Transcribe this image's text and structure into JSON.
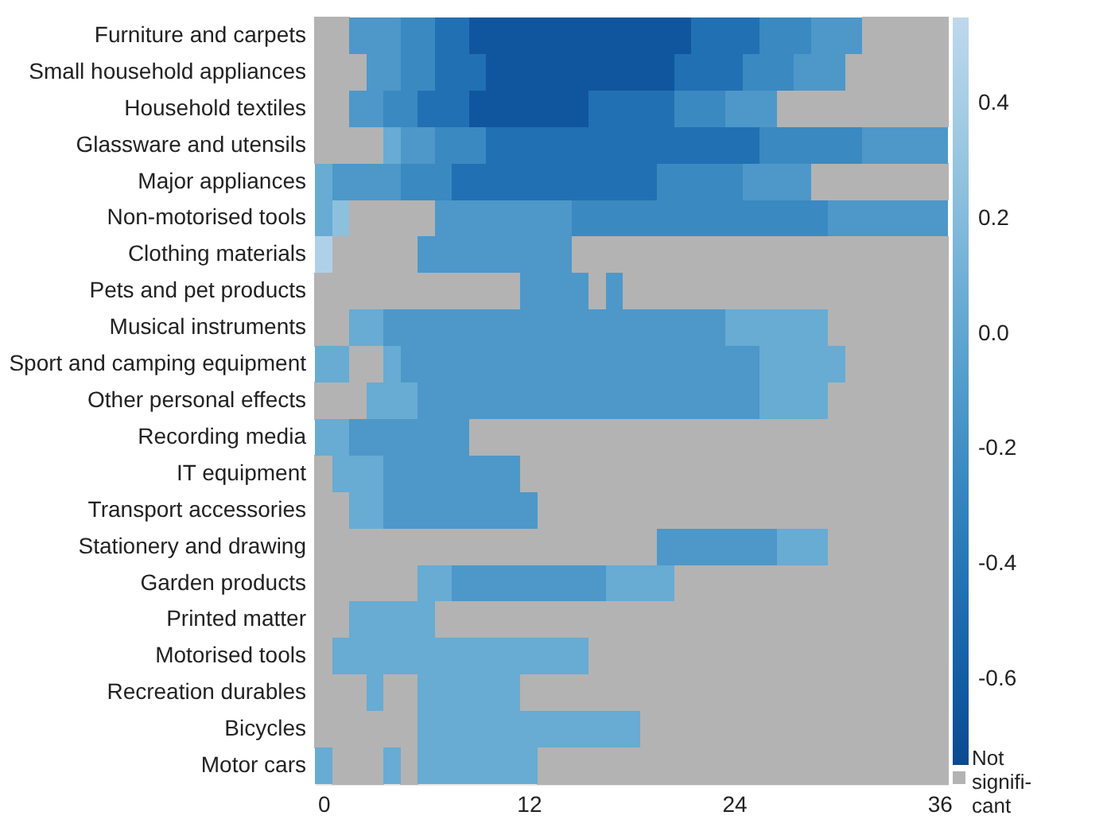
{
  "chart_data": {
    "type": "heatmap",
    "x": [
      0,
      1,
      2,
      3,
      4,
      5,
      6,
      7,
      8,
      9,
      10,
      11,
      12,
      13,
      14,
      15,
      16,
      17,
      18,
      19,
      20,
      21,
      22,
      23,
      24,
      25,
      26,
      27,
      28,
      29,
      30,
      31,
      32,
      33,
      34,
      35,
      36
    ],
    "xlim": [
      -0.5,
      36.5
    ],
    "xticks": [
      0,
      12,
      24,
      36
    ],
    "y_categories": [
      "Furniture and carpets",
      "Small household appliances",
      "Household textiles",
      "Glassware and utensils",
      "Major appliances",
      "Non-motorised tools",
      "Clothing materials",
      "Pets and pet products",
      "Musical instruments",
      "Sport and camping equipment",
      "Other personal effects",
      "Recording media",
      "IT equipment",
      "Transport accessories",
      "Stationery and drawing",
      "Garden products",
      "Printed matter",
      "Motorised tools",
      "Recreation durables",
      "Bicycles",
      "Motor cars"
    ],
    "cells": [
      [
        null,
        null,
        -0.12,
        -0.12,
        -0.12,
        -0.25,
        -0.25,
        -0.45,
        -0.45,
        -0.65,
        -0.65,
        -0.65,
        -0.65,
        -0.65,
        -0.65,
        -0.65,
        -0.65,
        -0.65,
        -0.65,
        -0.65,
        -0.65,
        -0.65,
        -0.45,
        -0.45,
        -0.45,
        -0.45,
        -0.25,
        -0.25,
        -0.25,
        -0.12,
        -0.12,
        -0.12,
        null,
        null,
        null,
        null,
        null
      ],
      [
        null,
        null,
        null,
        -0.12,
        -0.12,
        -0.25,
        -0.25,
        -0.45,
        -0.45,
        -0.45,
        -0.65,
        -0.65,
        -0.65,
        -0.65,
        -0.65,
        -0.65,
        -0.65,
        -0.65,
        -0.65,
        -0.65,
        -0.65,
        -0.45,
        -0.45,
        -0.45,
        -0.45,
        -0.25,
        -0.25,
        -0.25,
        -0.12,
        -0.12,
        -0.12,
        null,
        null,
        null,
        null,
        null,
        null
      ],
      [
        null,
        null,
        -0.12,
        -0.12,
        -0.25,
        -0.25,
        -0.45,
        -0.45,
        -0.45,
        -0.65,
        -0.65,
        -0.65,
        -0.65,
        -0.65,
        -0.65,
        -0.65,
        -0.45,
        -0.45,
        -0.45,
        -0.45,
        -0.45,
        -0.25,
        -0.25,
        -0.25,
        -0.12,
        -0.12,
        -0.12,
        null,
        null,
        null,
        null,
        null,
        null,
        null,
        null,
        null,
        null
      ],
      [
        null,
        null,
        null,
        null,
        0.05,
        -0.12,
        -0.12,
        -0.25,
        -0.25,
        -0.25,
        -0.45,
        -0.45,
        -0.45,
        -0.45,
        -0.45,
        -0.45,
        -0.45,
        -0.45,
        -0.45,
        -0.45,
        -0.45,
        -0.45,
        -0.45,
        -0.45,
        -0.45,
        -0.45,
        -0.25,
        -0.25,
        -0.25,
        -0.25,
        -0.25,
        -0.25,
        -0.12,
        -0.12,
        -0.12,
        -0.12,
        -0.12
      ],
      [
        0.05,
        -0.12,
        -0.12,
        -0.12,
        -0.12,
        -0.25,
        -0.25,
        -0.25,
        -0.45,
        -0.45,
        -0.45,
        -0.45,
        -0.45,
        -0.45,
        -0.45,
        -0.45,
        -0.45,
        -0.45,
        -0.45,
        -0.45,
        -0.25,
        -0.25,
        -0.25,
        -0.25,
        -0.25,
        -0.12,
        -0.12,
        -0.12,
        -0.12,
        null,
        null,
        null,
        null,
        null,
        null,
        null,
        null
      ],
      [
        0.05,
        0.25,
        null,
        null,
        null,
        null,
        null,
        -0.12,
        -0.12,
        -0.12,
        -0.12,
        -0.12,
        -0.12,
        -0.12,
        -0.12,
        -0.25,
        -0.25,
        -0.25,
        -0.25,
        -0.25,
        -0.25,
        -0.25,
        -0.25,
        -0.25,
        -0.25,
        -0.25,
        -0.25,
        -0.25,
        -0.25,
        -0.25,
        -0.12,
        -0.12,
        -0.12,
        -0.12,
        -0.12,
        -0.12,
        -0.12
      ],
      [
        0.45,
        null,
        null,
        null,
        null,
        null,
        -0.12,
        -0.12,
        -0.12,
        -0.12,
        -0.12,
        -0.12,
        -0.12,
        -0.12,
        -0.12,
        null,
        null,
        null,
        null,
        null,
        null,
        null,
        null,
        null,
        null,
        null,
        null,
        null,
        null,
        null,
        null,
        null,
        null,
        null,
        null,
        null,
        null
      ],
      [
        null,
        null,
        null,
        null,
        null,
        null,
        null,
        null,
        null,
        null,
        null,
        null,
        -0.12,
        -0.12,
        -0.12,
        -0.12,
        null,
        -0.12,
        null,
        null,
        null,
        null,
        null,
        null,
        null,
        null,
        null,
        null,
        null,
        null,
        null,
        null,
        null,
        null,
        null,
        null,
        null
      ],
      [
        null,
        null,
        0.05,
        0.05,
        -0.12,
        -0.12,
        -0.12,
        -0.12,
        -0.12,
        -0.12,
        -0.12,
        -0.12,
        -0.12,
        -0.12,
        -0.12,
        -0.12,
        -0.12,
        -0.12,
        -0.12,
        -0.12,
        -0.12,
        -0.12,
        -0.12,
        -0.12,
        0.05,
        0.05,
        0.05,
        0.05,
        0.05,
        0.05,
        null,
        null,
        null,
        null,
        null,
        null,
        null
      ],
      [
        0.05,
        0.05,
        null,
        null,
        0.05,
        -0.12,
        -0.12,
        -0.12,
        -0.12,
        -0.12,
        -0.12,
        -0.12,
        -0.12,
        -0.12,
        -0.12,
        -0.12,
        -0.12,
        -0.12,
        -0.12,
        -0.12,
        -0.12,
        -0.12,
        -0.12,
        -0.12,
        -0.12,
        -0.12,
        0.05,
        0.05,
        0.05,
        0.05,
        0.05,
        null,
        null,
        null,
        null,
        null,
        null
      ],
      [
        null,
        null,
        null,
        0.05,
        0.05,
        0.05,
        -0.12,
        -0.12,
        -0.12,
        -0.12,
        -0.12,
        -0.12,
        -0.12,
        -0.12,
        -0.12,
        -0.12,
        -0.12,
        -0.12,
        -0.12,
        -0.12,
        -0.12,
        -0.12,
        -0.12,
        -0.12,
        -0.12,
        -0.12,
        0.05,
        0.05,
        0.05,
        0.05,
        null,
        null,
        null,
        null,
        null,
        null,
        null
      ],
      [
        0.05,
        0.05,
        -0.12,
        -0.12,
        -0.12,
        -0.12,
        -0.12,
        -0.12,
        -0.12,
        null,
        null,
        null,
        null,
        null,
        null,
        null,
        null,
        null,
        null,
        null,
        null,
        null,
        null,
        null,
        null,
        null,
        null,
        null,
        null,
        null,
        null,
        null,
        null,
        null,
        null,
        null,
        null
      ],
      [
        null,
        0.05,
        0.05,
        0.05,
        -0.12,
        -0.12,
        -0.12,
        -0.12,
        -0.12,
        -0.12,
        -0.12,
        -0.12,
        null,
        null,
        null,
        null,
        null,
        null,
        null,
        null,
        null,
        null,
        null,
        null,
        null,
        null,
        null,
        null,
        null,
        null,
        null,
        null,
        null,
        null,
        null,
        null,
        null
      ],
      [
        null,
        null,
        0.05,
        0.05,
        -0.12,
        -0.12,
        -0.12,
        -0.12,
        -0.12,
        -0.12,
        -0.12,
        -0.12,
        -0.12,
        null,
        null,
        null,
        null,
        null,
        null,
        null,
        null,
        null,
        null,
        null,
        null,
        null,
        null,
        null,
        null,
        null,
        null,
        null,
        null,
        null,
        null,
        null,
        null
      ],
      [
        null,
        null,
        null,
        null,
        null,
        null,
        null,
        null,
        null,
        null,
        null,
        null,
        null,
        null,
        null,
        null,
        null,
        null,
        null,
        null,
        -0.12,
        -0.12,
        -0.12,
        -0.12,
        -0.12,
        -0.12,
        -0.12,
        0.05,
        0.05,
        0.05,
        null,
        null,
        null,
        null,
        null,
        null,
        null
      ],
      [
        null,
        null,
        null,
        null,
        null,
        null,
        0.05,
        0.05,
        -0.12,
        -0.12,
        -0.12,
        -0.12,
        -0.12,
        -0.12,
        -0.12,
        -0.12,
        -0.12,
        0.05,
        0.05,
        0.05,
        0.05,
        null,
        null,
        null,
        null,
        null,
        null,
        null,
        null,
        null,
        null,
        null,
        null,
        null,
        null,
        null,
        null
      ],
      [
        null,
        null,
        0.05,
        0.05,
        0.05,
        0.05,
        0.05,
        null,
        null,
        null,
        null,
        null,
        null,
        null,
        null,
        null,
        null,
        null,
        null,
        null,
        null,
        null,
        null,
        null,
        null,
        null,
        null,
        null,
        null,
        null,
        null,
        null,
        null,
        null,
        null,
        null,
        null
      ],
      [
        null,
        0.05,
        0.05,
        0.05,
        0.05,
        0.05,
        0.05,
        0.05,
        0.05,
        0.05,
        0.05,
        0.05,
        0.05,
        0.05,
        0.05,
        0.05,
        null,
        null,
        null,
        null,
        null,
        null,
        null,
        null,
        null,
        null,
        null,
        null,
        null,
        null,
        null,
        null,
        null,
        null,
        null,
        null,
        null
      ],
      [
        null,
        null,
        null,
        0.05,
        null,
        null,
        0.05,
        0.05,
        0.05,
        0.05,
        0.05,
        0.05,
        null,
        null,
        null,
        null,
        null,
        null,
        null,
        null,
        null,
        null,
        null,
        null,
        null,
        null,
        null,
        null,
        null,
        null,
        null,
        null,
        null,
        null,
        null,
        null,
        null
      ],
      [
        null,
        null,
        null,
        null,
        null,
        null,
        0.05,
        0.05,
        0.05,
        0.05,
        0.05,
        0.05,
        0.05,
        0.05,
        0.05,
        0.05,
        0.05,
        0.05,
        0.05,
        null,
        null,
        null,
        null,
        null,
        null,
        null,
        null,
        null,
        null,
        null,
        null,
        null,
        null,
        null,
        null,
        null,
        null
      ],
      [
        0.05,
        null,
        null,
        null,
        0.05,
        null,
        0.05,
        0.05,
        0.05,
        0.05,
        0.05,
        0.05,
        0.05,
        null,
        null,
        null,
        null,
        null,
        null,
        null,
        null,
        null,
        null,
        null,
        null,
        null,
        null,
        null,
        null,
        null,
        null,
        null,
        null,
        null,
        null,
        null,
        null
      ]
    ],
    "clim": [
      -0.75,
      0.55
    ],
    "cticks": [
      0.4,
      0.2,
      {
        "value": 0,
        "label": "0.0"
      },
      -0.2,
      -0.4,
      -0.6
    ],
    "annotations": [
      "Not\nsignifi-\ncant"
    ]
  }
}
